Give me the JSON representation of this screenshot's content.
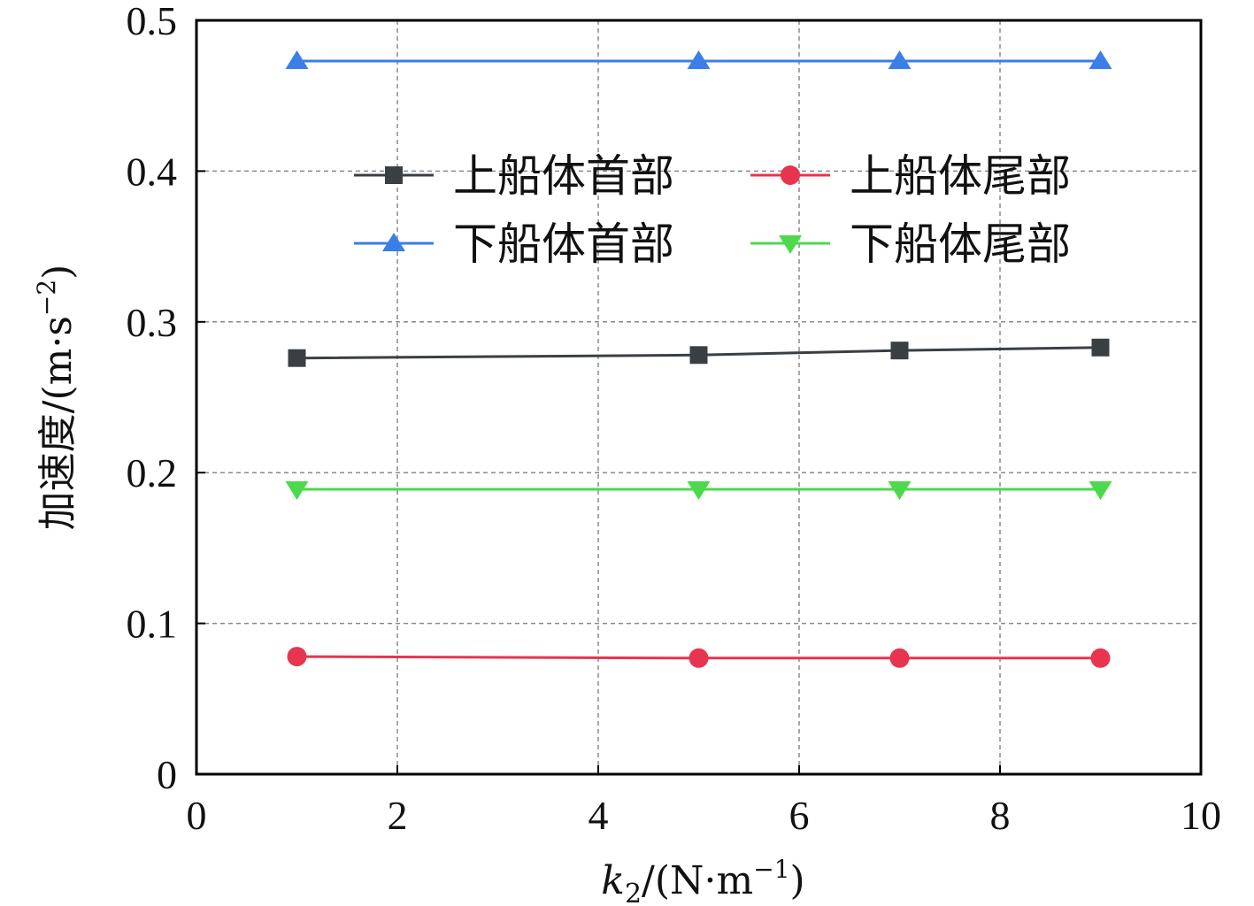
{
  "chart_data": {
    "type": "line",
    "title": "",
    "xlabel": "k2/(N·m⁻¹)",
    "xlabel_parts": {
      "var": "k",
      "sub": "2",
      "rest_a": "/(N·m",
      "sup": "−1",
      "rest_b": ")"
    },
    "ylabel": "加速度/(m·s⁻²)",
    "ylabel_parts": {
      "main": "加速度/(m·s",
      "sup": "−2",
      "close": ")"
    },
    "xlim": [
      0,
      10
    ],
    "ylim": [
      0,
      0.5
    ],
    "x_ticks": [
      0,
      2,
      4,
      6,
      8,
      10
    ],
    "y_ticks": [
      0,
      0.1,
      0.2,
      0.3,
      0.4,
      0.5
    ],
    "x_tick_labels": [
      "0",
      "2",
      "4",
      "6",
      "8",
      "10"
    ],
    "y_tick_labels": [
      "0",
      "0.1",
      "0.2",
      "0.3",
      "0.4",
      "0.5"
    ],
    "grid": true,
    "legend_position": "upper-center",
    "x": [
      1,
      5,
      7,
      9
    ],
    "series": [
      {
        "name": "上船体首部",
        "values": [
          0.276,
          0.278,
          0.281,
          0.283
        ],
        "color": "#3a3f44",
        "marker": "square"
      },
      {
        "name": "上船体尾部",
        "values": [
          0.078,
          0.077,
          0.077,
          0.077
        ],
        "color": "#e8344e",
        "marker": "circle"
      },
      {
        "name": "下船体首部",
        "values": [
          0.473,
          0.473,
          0.473,
          0.473
        ],
        "color": "#3a7ee8",
        "marker": "triangle-up"
      },
      {
        "name": "下船体尾部",
        "values": [
          0.189,
          0.189,
          0.189,
          0.189
        ],
        "color": "#4cd94c",
        "marker": "triangle-down"
      }
    ]
  }
}
